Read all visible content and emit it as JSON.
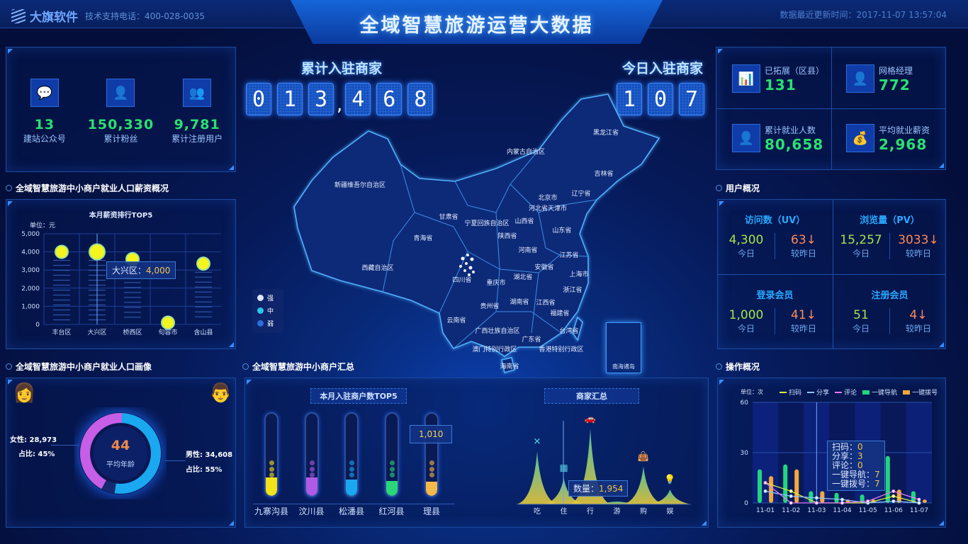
{
  "header": {
    "logo_text": "大旗软件",
    "phone": "技术支持电话：400-028-0035",
    "title": "全域智慧旅游运营大数据",
    "update_time": "数据最近更新时间：2017-11-07 13:57:04"
  },
  "top_left": {
    "items": [
      {
        "icon": "chat-bubbles-icon",
        "value": "13",
        "label": "建站公众号"
      },
      {
        "icon": "user-icon",
        "value": "150,330",
        "label": "累计粉丝"
      },
      {
        "icon": "users-icon",
        "value": "9,781",
        "label": "累计注册用户"
      }
    ]
  },
  "counters": {
    "total_label": "累计入驻商家",
    "total_digits": [
      "0",
      "1",
      "3",
      ",",
      "4",
      "6",
      "8"
    ],
    "today_label": "今日入驻商家",
    "today_digits": [
      "1",
      "0",
      "7"
    ]
  },
  "top_right": {
    "items": [
      {
        "icon": "bar-chart-icon",
        "label": "已拓展（区县）",
        "value": "131"
      },
      {
        "icon": "manager-icon",
        "label": "网格经理",
        "value": "772"
      },
      {
        "icon": "person-icon",
        "label": "累计就业人数",
        "value": "80,658"
      },
      {
        "icon": "money-bag-icon",
        "label": "平均就业薪资",
        "value": "2,968"
      }
    ]
  },
  "salary": {
    "section_title": "全域智慧旅游中小商户就业人口薪资概况",
    "chart_data": {
      "type": "scatter",
      "title": "本月薪资排行TOP5",
      "unit": "单位：元",
      "categories": [
        "丰台区",
        "大兴区",
        "桥西区",
        "句容市",
        "含山县"
      ],
      "values": [
        4000,
        4000,
        3600,
        100,
        3350
      ],
      "ylim": [
        0,
        5000
      ],
      "yticks": [
        "0",
        "1,000",
        "2,000",
        "3,000",
        "4,000",
        "5,000"
      ],
      "highlight": "大兴区",
      "tooltip_label": "大兴区：",
      "tooltip_value": "4,000",
      "color": "#f4f51e"
    }
  },
  "map": {
    "legend": [
      {
        "label": "强",
        "color": "#dfe8ff"
      },
      {
        "label": "中",
        "color": "#27c8e8"
      },
      {
        "label": "弱",
        "color": "#2a6ee0"
      }
    ],
    "provinces": [
      "黑龙江省",
      "内蒙古自治区",
      "吉林省",
      "新疆维吾尔自治区",
      "辽宁省",
      "北京市",
      "河北省天津市",
      "甘肃省",
      "宁夏回族自治区",
      "山西省",
      "山东省",
      "青海省",
      "陕西省",
      "河南省",
      "江苏省",
      "安徽省",
      "西藏自治区",
      "湖北省",
      "上海市",
      "四川省",
      "重庆市",
      "浙江省",
      "湖南省",
      "贵州省",
      "江西省",
      "福建省",
      "云南省",
      "台湾省",
      "广西壮族自治区",
      "广东省",
      "澳门特别行政区",
      "香港特别行政区",
      "海南省"
    ],
    "south_sea": "南海诸岛"
  },
  "user_overview": {
    "section_title": "用户概况",
    "blocks": [
      {
        "title": "访问数（UV）",
        "today": "4,300",
        "change": "63↓"
      },
      {
        "title": "浏览量（PV）",
        "today": "15,257",
        "change": "3033↓"
      },
      {
        "title": "登录会员",
        "today": "1,000",
        "change": "41↓"
      },
      {
        "title": "注册会员",
        "today": "51",
        "change": "4↓"
      }
    ],
    "today_label": "今日",
    "compare_label": "较昨日"
  },
  "portrait": {
    "section_title": "全域智慧旅游中小商户就业人口画像",
    "female_label": "女性: 28,973",
    "female_ratio": "占比: 45%",
    "male_label": "男性: 34,608",
    "male_ratio": "占比: 55%",
    "avg_age": "44",
    "avg_age_label": "平均年龄",
    "chart_data": {
      "type": "pie",
      "values": [
        45,
        55
      ],
      "labels": [
        "女性",
        "男性"
      ],
      "colors": [
        "#c65ee8",
        "#1aa8f0"
      ]
    }
  },
  "merchants": {
    "section_title": "全域智慧旅游中小商户汇总",
    "tubes": {
      "title": "本月入驻商户数TOP5",
      "chart_data": {
        "type": "bar",
        "categories": [
          "九寨沟县",
          "汶川县",
          "松潘县",
          "红河县",
          "理县"
        ],
        "fill_percent": [
          22,
          22,
          20,
          18,
          17
        ],
        "colors": [
          "#f2e21a",
          "#b05ae8",
          "#1aa8f0",
          "#2bd67a",
          "#f2b84a"
        ],
        "tooltip_value": "1,010"
      }
    },
    "summary": {
      "title": "商家汇总",
      "chart_data": {
        "type": "area",
        "categories": [
          "吃",
          "住",
          "行",
          "游",
          "购",
          "娱"
        ],
        "values": [
          3900,
          1954,
          5600,
          200,
          2800,
          1100
        ],
        "icons": [
          "fork-knife-icon",
          "hotel-icon",
          "car-icon",
          "",
          "shopping-bag-icon",
          "lightbulb-icon"
        ],
        "tooltip_label": "数量：",
        "tooltip_value": "1,954"
      }
    }
  },
  "operations": {
    "section_title": "操作概况",
    "chart_data": {
      "type": "bar",
      "unit": "单位：次",
      "categories": [
        "11-01",
        "11-02",
        "11-03",
        "11-04",
        "11-05",
        "11-06",
        "11-07"
      ],
      "ylim": [
        0,
        60
      ],
      "yticks": [
        "0",
        "30",
        "60"
      ],
      "bar_series": [
        {
          "name": "一键导航",
          "values": [
            20,
            23,
            7,
            6,
            5,
            28,
            7
          ],
          "color": "#22d67e"
        },
        {
          "name": "一键拨号",
          "values": [
            16,
            20,
            7,
            2,
            2,
            8,
            2
          ],
          "color": "#f5a83a"
        }
      ],
      "line_series": [
        {
          "name": "扫码",
          "values": [
            12,
            7,
            0,
            0,
            0,
            4,
            0
          ],
          "color": "#d8f03c"
        },
        {
          "name": "分享",
          "values": [
            7,
            4,
            3,
            2,
            0,
            1,
            0
          ],
          "color": "#8fc4ff"
        },
        {
          "name": "评论",
          "values": [
            12,
            0,
            0,
            0,
            1,
            7,
            2
          ],
          "color": "#e27cf0"
        }
      ],
      "tooltip": [
        "扫码：",
        "0",
        "分享：",
        "3",
        "评论：",
        "0",
        "一键导航：",
        "7",
        "一键拨号：",
        "7"
      ]
    }
  }
}
